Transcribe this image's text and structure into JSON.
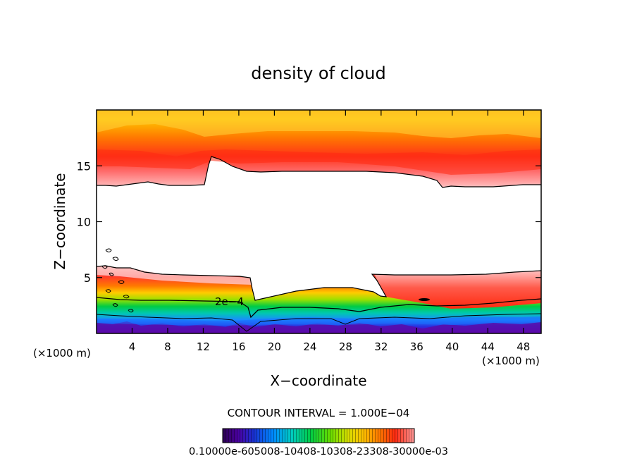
{
  "chart_data": {
    "type": "heatmap",
    "title": "density of cloud",
    "xlabel": "X−coordinate",
    "ylabel": "Z−coordinate",
    "x_unit_left": "(×1000 m)",
    "x_unit_right": "(×1000 m)",
    "xlim": [
      0,
      50
    ],
    "ylim": [
      0,
      20
    ],
    "xticks": [
      4,
      8,
      12,
      16,
      20,
      24,
      28,
      32,
      36,
      40,
      44,
      48
    ],
    "yticks": [
      5,
      10,
      15
    ],
    "contour_label": "2e−4",
    "contour_interval_text": "CONTOUR INTERVAL = 1.000E−04",
    "colorbar_labels_text": "0.10000e-605008-10408-10308-23308-30000e-03",
    "colorbar_stops": [
      {
        "v": 0.0,
        "c": "#2b0050"
      },
      {
        "v": 0.08,
        "c": "#4a00a0"
      },
      {
        "v": 0.16,
        "c": "#1a2fd0"
      },
      {
        "v": 0.26,
        "c": "#0088ff"
      },
      {
        "v": 0.36,
        "c": "#00ccc0"
      },
      {
        "v": 0.46,
        "c": "#00cc44"
      },
      {
        "v": 0.56,
        "c": "#66dd00"
      },
      {
        "v": 0.66,
        "c": "#dddd00"
      },
      {
        "v": 0.74,
        "c": "#ffbb00"
      },
      {
        "v": 0.82,
        "c": "#ff7700"
      },
      {
        "v": 0.9,
        "c": "#ff2a10"
      },
      {
        "v": 1.0,
        "c": "#ff9a9a"
      }
    ],
    "regions": {
      "upper_layer": {
        "x": [
          0,
          50
        ],
        "z_bottom_approx": 13.3,
        "z_top": 20,
        "description_colors": [
          "#ffd200",
          "#ff8c00",
          "#ff3a1a",
          "#ffb0b0"
        ]
      },
      "lower_layer": {
        "x": [
          0,
          50
        ],
        "z_bottom": 0,
        "z_top_approx": 5.3,
        "description_colors": [
          "#ff9a9a",
          "#ff2a10",
          "#ff8800",
          "#ffcc00",
          "#99dd00",
          "#00cc44",
          "#00bbbb",
          "#2244ee",
          "#6a00b0"
        ]
      }
    }
  }
}
